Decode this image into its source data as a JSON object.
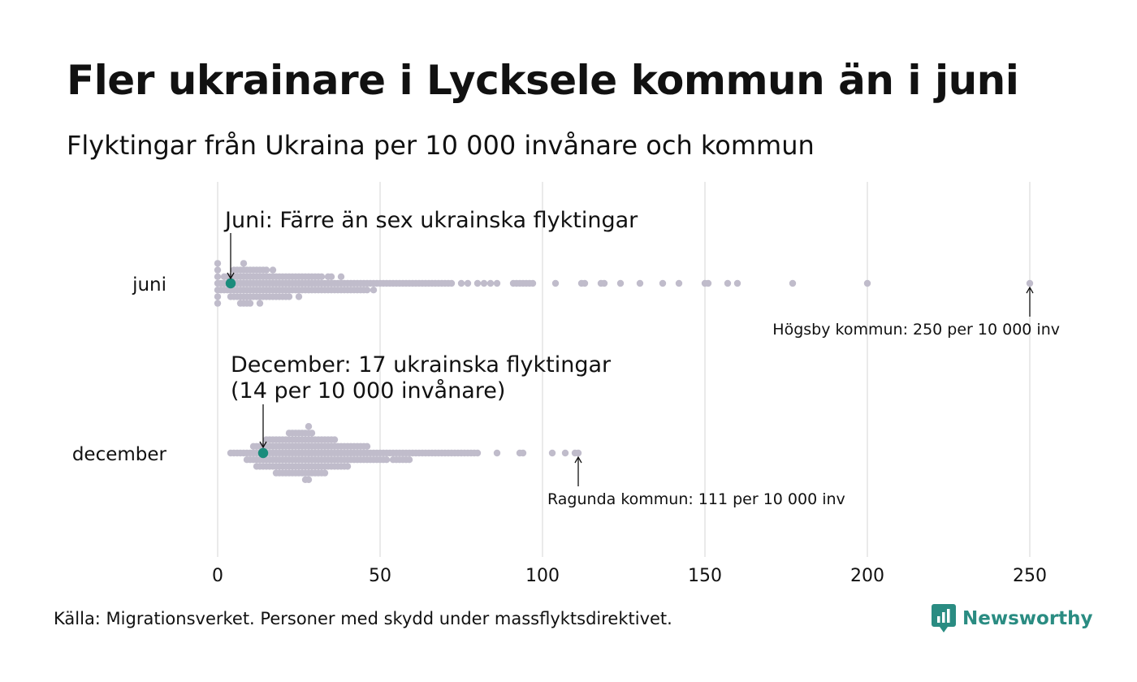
{
  "title": "Fler ukrainare i Lycksele kommun än i juni",
  "subtitle": "Flyktingar från Ukraina per 10 000 invånare och kommun",
  "source": "Källa: Migrationsverket. Personer med skydd under massflyktsdirektivet.",
  "brand": {
    "name": "Newsworthy",
    "color": "#2a8c82"
  },
  "chart_data": {
    "type": "scatter",
    "title": "Fler ukrainare i Lycksele kommun än i juni",
    "subtitle": "Flyktingar från Ukraina per 10 000 invånare och kommun",
    "xlabel": "",
    "ylabel": "",
    "xlim": [
      0,
      260
    ],
    "xticks": [
      0,
      50,
      100,
      150,
      200,
      250
    ],
    "grid": true,
    "colors": {
      "points": "#c0bccb",
      "highlight": "#1a8c7c",
      "grid": "#d4d4d4"
    },
    "categories": [
      "juni",
      "december"
    ],
    "series": [
      {
        "name": "juni",
        "highlight_value": 4,
        "values": [
          0,
          0,
          0,
          0,
          0,
          0,
          0,
          1,
          1,
          2,
          2,
          2,
          3,
          3,
          3,
          4,
          4,
          4,
          4,
          5,
          5,
          5,
          5,
          5,
          6,
          6,
          6,
          6,
          6,
          7,
          7,
          7,
          7,
          7,
          7,
          8,
          8,
          8,
          8,
          8,
          8,
          8,
          9,
          9,
          9,
          9,
          9,
          9,
          10,
          10,
          10,
          10,
          10,
          10,
          11,
          11,
          11,
          11,
          11,
          12,
          12,
          12,
          12,
          12,
          13,
          13,
          13,
          13,
          13,
          13,
          14,
          14,
          14,
          14,
          14,
          15,
          15,
          15,
          15,
          15,
          16,
          16,
          16,
          16,
          17,
          17,
          17,
          17,
          17,
          18,
          18,
          18,
          18,
          19,
          19,
          19,
          19,
          20,
          20,
          20,
          20,
          21,
          21,
          21,
          21,
          22,
          22,
          22,
          22,
          23,
          23,
          23,
          24,
          24,
          24,
          25,
          25,
          25,
          25,
          26,
          26,
          26,
          27,
          27,
          27,
          28,
          28,
          28,
          29,
          29,
          29,
          30,
          30,
          30,
          31,
          31,
          31,
          32,
          32,
          32,
          33,
          33,
          34,
          34,
          34,
          35,
          35,
          35,
          36,
          36,
          37,
          37,
          38,
          38,
          38,
          39,
          39,
          40,
          40,
          41,
          41,
          42,
          42,
          43,
          43,
          44,
          44,
          45,
          45,
          46,
          46,
          47,
          48,
          48,
          49,
          50,
          51,
          52,
          53,
          54,
          55,
          56,
          57,
          58,
          59,
          60,
          61,
          62,
          63,
          64,
          65,
          66,
          67,
          68,
          69,
          70,
          71,
          72,
          75,
          77,
          80,
          82,
          84,
          86,
          91,
          92,
          93,
          94,
          95,
          96,
          97,
          104,
          112,
          113,
          118,
          119,
          124,
          130,
          137,
          142,
          150,
          151,
          157,
          160,
          177,
          200,
          250
        ],
        "annotation": {
          "text": "Juni: Färre än sex ukrainska flyktingar",
          "x": 4
        },
        "max_label": {
          "text": "Högsby kommun: 250 per 10 000 inv",
          "x": 250
        }
      },
      {
        "name": "december",
        "highlight_value": 14,
        "values": [
          4,
          5,
          6,
          7,
          8,
          9,
          9,
          10,
          10,
          11,
          11,
          11,
          12,
          12,
          12,
          12,
          13,
          13,
          13,
          13,
          14,
          14,
          14,
          14,
          15,
          15,
          15,
          15,
          15,
          16,
          16,
          16,
          16,
          16,
          17,
          17,
          17,
          17,
          17,
          18,
          18,
          18,
          18,
          18,
          18,
          19,
          19,
          19,
          19,
          19,
          19,
          20,
          20,
          20,
          20,
          20,
          20,
          21,
          21,
          21,
          21,
          21,
          21,
          22,
          22,
          22,
          22,
          22,
          22,
          22,
          23,
          23,
          23,
          23,
          23,
          23,
          23,
          24,
          24,
          24,
          24,
          24,
          24,
          24,
          25,
          25,
          25,
          25,
          25,
          25,
          25,
          26,
          26,
          26,
          26,
          26,
          26,
          26,
          27,
          27,
          27,
          27,
          27,
          27,
          27,
          27,
          28,
          28,
          28,
          28,
          28,
          28,
          28,
          28,
          28,
          29,
          29,
          29,
          29,
          29,
          29,
          29,
          30,
          30,
          30,
          30,
          30,
          30,
          31,
          31,
          31,
          31,
          31,
          31,
          32,
          32,
          32,
          32,
          32,
          32,
          33,
          33,
          33,
          33,
          33,
          33,
          34,
          34,
          34,
          34,
          34,
          35,
          35,
          35,
          35,
          35,
          36,
          36,
          36,
          36,
          36,
          37,
          37,
          37,
          37,
          38,
          38,
          38,
          38,
          39,
          39,
          39,
          39,
          40,
          40,
          40,
          40,
          41,
          41,
          41,
          42,
          42,
          42,
          43,
          43,
          43,
          44,
          44,
          44,
          45,
          45,
          45,
          46,
          46,
          46,
          47,
          47,
          48,
          48,
          49,
          49,
          50,
          50,
          51,
          51,
          52,
          52,
          53,
          54,
          54,
          55,
          55,
          56,
          56,
          57,
          57,
          58,
          58,
          59,
          59,
          60,
          61,
          62,
          63,
          64,
          65,
          66,
          67,
          68,
          69,
          70,
          71,
          72,
          73,
          74,
          75,
          76,
          77,
          78,
          79,
          80,
          86,
          93,
          94,
          103,
          107,
          110,
          111
        ],
        "annotation": {
          "text_line1": "December: 17 ukrainska flyktingar",
          "text_line2": "(14 per 10 000 invånare)",
          "x": 14
        },
        "max_label": {
          "text": "Ragunda kommun: 111 per 10 000 inv",
          "x": 111
        }
      }
    ]
  }
}
